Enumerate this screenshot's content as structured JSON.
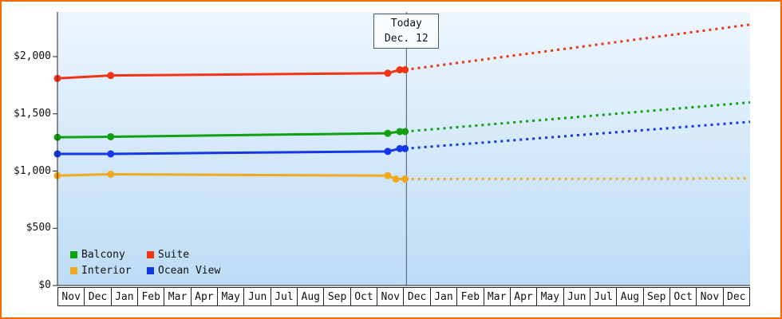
{
  "chart_data": {
    "type": "line",
    "title": "",
    "xlabel": "",
    "ylabel": "",
    "y_ticks": [
      {
        "value": 0,
        "label": "$0"
      },
      {
        "value": 500,
        "label": "$500"
      },
      {
        "value": 1000,
        "label": "$1,000"
      },
      {
        "value": 1500,
        "label": "$1,500"
      },
      {
        "value": 2000,
        "label": "$2,000"
      }
    ],
    "ylim": [
      0,
      2390
    ],
    "x_months": [
      "Nov",
      "Dec",
      "Jan",
      "Feb",
      "Mar",
      "Apr",
      "May",
      "Jun",
      "Jul",
      "Aug",
      "Sep",
      "Oct",
      "Nov",
      "Dec",
      "Jan",
      "Feb",
      "Mar",
      "Apr",
      "May",
      "Jun",
      "Jul",
      "Aug",
      "Sep",
      "Oct",
      "Nov",
      "Dec"
    ],
    "today": {
      "label": "Today",
      "date": "Dec. 12",
      "month_position": 13.1
    },
    "series": [
      {
        "name": "Balcony",
        "color": "#10a010",
        "history": [
          [
            0,
            1295
          ],
          [
            2,
            1300
          ],
          [
            12.4,
            1330
          ],
          [
            12.85,
            1345
          ],
          [
            13.05,
            1345
          ]
        ],
        "forecast": [
          [
            13.05,
            1345
          ],
          [
            26,
            1600
          ]
        ]
      },
      {
        "name": "Suite",
        "color": "#f03414",
        "history": [
          [
            0,
            1810
          ],
          [
            2,
            1835
          ],
          [
            12.4,
            1855
          ],
          [
            12.85,
            1885
          ],
          [
            13.05,
            1885
          ]
        ],
        "forecast": [
          [
            13.05,
            1885
          ],
          [
            26,
            2280
          ]
        ]
      },
      {
        "name": "Interior",
        "color": "#f2a71f",
        "history": [
          [
            0,
            960
          ],
          [
            2,
            972
          ],
          [
            12.4,
            960
          ],
          [
            12.7,
            930
          ],
          [
            13.05,
            930
          ]
        ],
        "forecast": [
          [
            13.05,
            930
          ],
          [
            26,
            935
          ]
        ]
      },
      {
        "name": "Ocean View",
        "color": "#1438e6",
        "history": [
          [
            0,
            1150
          ],
          [
            2,
            1150
          ],
          [
            12.4,
            1172
          ],
          [
            12.85,
            1196
          ],
          [
            13.05,
            1196
          ]
        ],
        "forecast": [
          [
            13.05,
            1196
          ],
          [
            26,
            1430
          ]
        ]
      }
    ],
    "legend": [
      "Balcony",
      "Suite",
      "Interior",
      "Ocean View"
    ],
    "legend_position": "bottom-left",
    "grid": false,
    "solid_segment": "price history (before today)",
    "dotted_segment": "forecast (after today)",
    "plot_background": {
      "top": "#edf6fe",
      "bottom": "#bddcf5"
    },
    "frame_border_color": "#ff6a00",
    "axis_color": "#222222",
    "today_line_color": "#4a5a6a"
  }
}
